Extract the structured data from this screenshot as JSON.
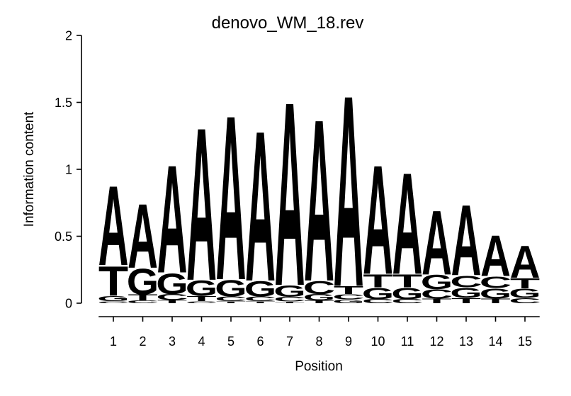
{
  "title": "denovo_WM_18.rev",
  "colors": {
    "A": "#00E319",
    "C": "#0000E6",
    "G": "#FFA500",
    "T": "#EE0000"
  },
  "chart_data": {
    "type": "sequence-logo",
    "title": "denovo_WM_18.rev",
    "xlabel": "Position",
    "ylabel": "Information content",
    "unit": "bits",
    "ylim": [
      0,
      2
    ],
    "ytick_values": [
      0,
      0.5,
      1,
      1.5,
      2
    ],
    "ytick_labels": [
      "0",
      "0.5",
      "1",
      "1.5",
      "2"
    ],
    "xtick_labels": [
      "1",
      "2",
      "3",
      "4",
      "5",
      "6",
      "7",
      "8",
      "9",
      "10",
      "11",
      "12",
      "13",
      "14",
      "15"
    ],
    "stack_order": "bottom_to_top",
    "stacks": [
      {
        "position": 1,
        "letters": [
          {
            "base": "C",
            "bits": 0.015
          },
          {
            "base": "G",
            "bits": 0.04
          },
          {
            "base": "T",
            "bits": 0.23
          },
          {
            "base": "A",
            "bits": 0.62
          }
        ]
      },
      {
        "position": 2,
        "letters": [
          {
            "base": "C",
            "bits": 0.02
          },
          {
            "base": "T",
            "bits": 0.045
          },
          {
            "base": "G",
            "bits": 0.2
          },
          {
            "base": "A",
            "bits": 0.5
          }
        ]
      },
      {
        "position": 3,
        "letters": [
          {
            "base": "T",
            "bits": 0.025
          },
          {
            "base": "C",
            "bits": 0.045
          },
          {
            "base": "G",
            "bits": 0.16
          },
          {
            "base": "A",
            "bits": 0.84
          }
        ]
      },
      {
        "position": 4,
        "letters": [
          {
            "base": "C",
            "bits": 0.015
          },
          {
            "base": "T",
            "bits": 0.04
          },
          {
            "base": "G",
            "bits": 0.12
          },
          {
            "base": "A",
            "bits": 1.19
          }
        ]
      },
      {
        "position": 5,
        "letters": [
          {
            "base": "T",
            "bits": 0.015
          },
          {
            "base": "C",
            "bits": 0.035
          },
          {
            "base": "G",
            "bits": 0.13
          },
          {
            "base": "A",
            "bits": 1.28
          }
        ]
      },
      {
        "position": 6,
        "letters": [
          {
            "base": "T",
            "bits": 0.015
          },
          {
            "base": "C",
            "bits": 0.035
          },
          {
            "base": "G",
            "bits": 0.12
          },
          {
            "base": "A",
            "bits": 1.17
          }
        ]
      },
      {
        "position": 7,
        "letters": [
          {
            "base": "T",
            "bits": 0.012
          },
          {
            "base": "C",
            "bits": 0.035
          },
          {
            "base": "G",
            "bits": 0.09
          },
          {
            "base": "A",
            "bits": 1.43
          }
        ]
      },
      {
        "position": 8,
        "letters": [
          {
            "base": "T",
            "bits": 0.02
          },
          {
            "base": "G",
            "bits": 0.05
          },
          {
            "base": "C",
            "bits": 0.1
          },
          {
            "base": "A",
            "bits": 1.26
          }
        ]
      },
      {
        "position": 9,
        "letters": [
          {
            "base": "G",
            "bits": 0.03
          },
          {
            "base": "C",
            "bits": 0.04
          },
          {
            "base": "T",
            "bits": 0.06
          },
          {
            "base": "A",
            "bits": 1.49
          }
        ]
      },
      {
        "position": 10,
        "letters": [
          {
            "base": "C",
            "bits": 0.03
          },
          {
            "base": "G",
            "bits": 0.09
          },
          {
            "base": "T",
            "bits": 0.1
          },
          {
            "base": "A",
            "bits": 0.85
          }
        ]
      },
      {
        "position": 11,
        "letters": [
          {
            "base": "C",
            "bits": 0.03
          },
          {
            "base": "G",
            "bits": 0.09
          },
          {
            "base": "T",
            "bits": 0.1
          },
          {
            "base": "A",
            "bits": 0.79
          }
        ]
      },
      {
        "position": 12,
        "letters": [
          {
            "base": "T",
            "bits": 0.035
          },
          {
            "base": "C",
            "bits": 0.07
          },
          {
            "base": "G",
            "bits": 0.11
          },
          {
            "base": "A",
            "bits": 0.5
          }
        ]
      },
      {
        "position": 13,
        "letters": [
          {
            "base": "T",
            "bits": 0.04
          },
          {
            "base": "G",
            "bits": 0.08
          },
          {
            "base": "C",
            "bits": 0.09
          },
          {
            "base": "A",
            "bits": 0.55
          }
        ]
      },
      {
        "position": 14,
        "letters": [
          {
            "base": "T",
            "bits": 0.035
          },
          {
            "base": "G",
            "bits": 0.08
          },
          {
            "base": "C",
            "bits": 0.09
          },
          {
            "base": "A",
            "bits": 0.32
          }
        ]
      },
      {
        "position": 15,
        "letters": [
          {
            "base": "C",
            "bits": 0.04
          },
          {
            "base": "G",
            "bits": 0.07
          },
          {
            "base": "T",
            "bits": 0.08
          },
          {
            "base": "A",
            "bits": 0.25
          }
        ]
      }
    ]
  }
}
